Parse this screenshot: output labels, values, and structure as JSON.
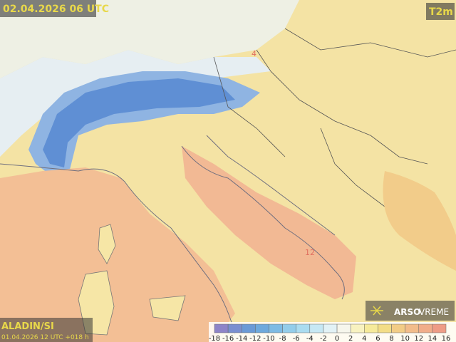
{
  "header": {
    "valid_time": "02.04.2026 06 UTC",
    "parameter": "T2m"
  },
  "footer": {
    "model": "ALADIN/SI",
    "run": "01.04.2026 12 UTC +018 h"
  },
  "logo": {
    "brand": "ARSO",
    "product": "VREME"
  },
  "contour_labels": [
    "12",
    "4"
  ],
  "legend": {
    "ticks": [
      -18,
      -16,
      -14,
      -12,
      -10,
      -8,
      -6,
      -4,
      -2,
      0,
      2,
      4,
      6,
      8,
      10,
      12,
      14,
      16
    ],
    "colors": [
      "#8e84c8",
      "#7a8fd0",
      "#6a9ad6",
      "#6ea9dc",
      "#7dbbe4",
      "#93cdea",
      "#aadcf0",
      "#c6e8f4",
      "#e2f2f6",
      "#f6f6ec",
      "#f8f2c0",
      "#f6ea9a",
      "#f3dd86",
      "#f2cc86",
      "#f2bc8a",
      "#f1ad8a",
      "#ee9c86"
    ]
  }
}
